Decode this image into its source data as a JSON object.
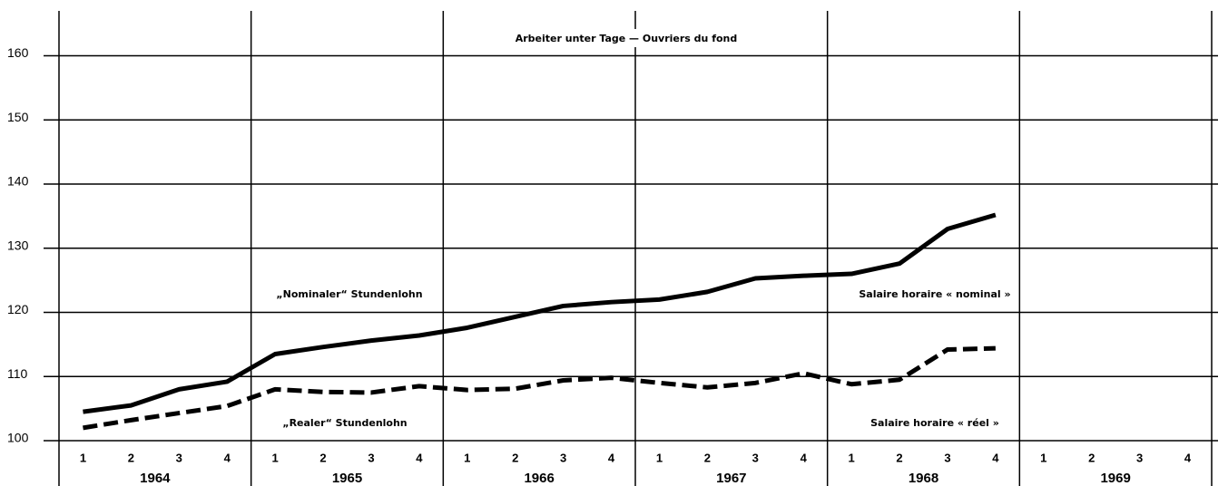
{
  "chart_data": {
    "type": "line",
    "title": "Arbeiter unter Tage — Ouvriers du fond",
    "annotations": [
      "„Nominaler“ Stundenlohn",
      "Salaire horaire « nominal »",
      "„Realer“ Stundenlohn",
      "Salaire horaire « réel »"
    ],
    "categories": [
      "1",
      "2",
      "3",
      "4",
      "1",
      "2",
      "3",
      "4",
      "1",
      "2",
      "3",
      "4",
      "1",
      "2",
      "3",
      "4",
      "1",
      "2",
      "3",
      "4",
      "1",
      "2",
      "3",
      "4"
    ],
    "groups": [
      "1964",
      "1965",
      "1966",
      "1967",
      "1968",
      "1969"
    ],
    "series": [
      {
        "name": "Nominal",
        "color": "#000000",
        "line_style": "solid",
        "values": [
          104.5,
          105.5,
          108,
          109.2,
          113.5,
          114.6,
          115.6,
          116.4,
          117.6,
          119.3,
          121,
          121.6,
          122,
          123.2,
          125.3,
          125.7,
          126,
          127.6,
          133,
          135.2,
          null,
          null,
          null,
          null
        ]
      },
      {
        "name": "Real",
        "color": "#000000",
        "line_style": "dashed",
        "values": [
          102,
          103.2,
          104.3,
          105.4,
          108,
          107.6,
          107.5,
          108.5,
          107.9,
          108.1,
          109.4,
          109.8,
          109,
          108.3,
          109,
          110.5,
          108.8,
          109.5,
          114.2,
          114.4,
          null,
          null,
          null,
          null
        ]
      }
    ],
    "ylim": [
      100,
      167
    ],
    "yticks": [
      100,
      110,
      120,
      130,
      140,
      150,
      160
    ],
    "grid": true
  }
}
